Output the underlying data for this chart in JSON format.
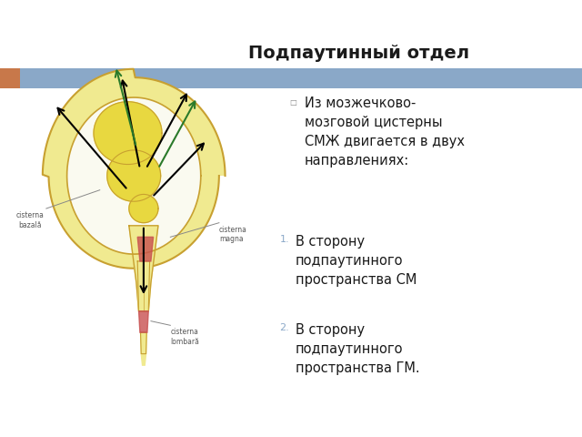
{
  "title": "Подпаутинный отдел",
  "title_fontsize": 14,
  "title_fontweight": "bold",
  "header_bar_color": "#8aa8c8",
  "header_bar2_color": "#c8784a",
  "background_color": "#ffffff",
  "bullet_text": "Из мозжечково-\nмозговой цистерны\nСМЖ двигается в двух\nнаправлениях:",
  "bullet_marker": "□",
  "numbered_items": [
    "В сторону\nподпаутинного\nпространства СМ",
    "В сторону\nподпаутинного\nпространства ГМ."
  ],
  "text_fontsize": 10.5,
  "text_color": "#1a1a1a",
  "number_color": "#8aa8c8"
}
